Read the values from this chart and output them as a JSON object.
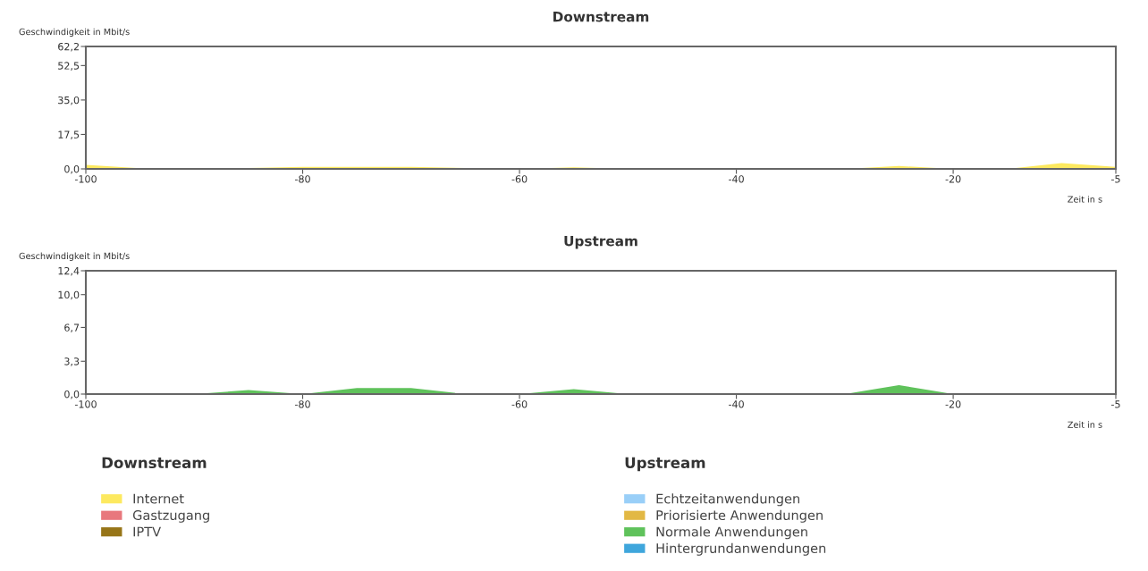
{
  "chart_data": [
    {
      "type": "area",
      "title": "Downstream",
      "ylabel": "Geschwindigkeit in Mbit/s",
      "xlabel": "Zeit in s",
      "legend_title": "Downstream",
      "legend": "bottom",
      "grid": false,
      "x": [
        -100,
        -95,
        -90,
        -85,
        -80,
        -75,
        -70,
        -65,
        -60,
        -55,
        -50,
        -45,
        -40,
        -35,
        -30,
        -25,
        -20,
        -15,
        -10,
        -5
      ],
      "xlim": [
        -100,
        -5
      ],
      "xticks": [
        -100,
        -80,
        -60,
        -40,
        -20,
        -5
      ],
      "ylim": [
        0,
        62.2
      ],
      "yticks": [
        {
          "value": 0,
          "label": "0,0"
        },
        {
          "value": 17.5,
          "label": "17,5"
        },
        {
          "value": 35,
          "label": "35,0"
        },
        {
          "value": 52.5,
          "label": "52,5"
        },
        {
          "value": 62.2,
          "label": "62,2"
        }
      ],
      "series": [
        {
          "name": "Internet",
          "color": "#fde95f",
          "values": [
            2,
            0.3,
            0,
            0.5,
            1,
            1,
            1,
            0.5,
            0,
            0.8,
            0,
            0,
            0,
            0,
            0,
            1.5,
            0,
            0,
            3,
            1
          ]
        },
        {
          "name": "Gastzugang",
          "color": "#e8787d",
          "values": [
            null,
            null,
            null,
            null,
            null,
            null,
            null,
            null,
            null,
            null,
            null,
            null,
            null,
            null,
            null,
            null,
            null,
            null,
            null,
            null
          ]
        },
        {
          "name": "IPTV",
          "color": "#977518",
          "values": [
            null,
            null,
            null,
            null,
            null,
            null,
            null,
            null,
            null,
            null,
            null,
            null,
            null,
            null,
            null,
            null,
            null,
            null,
            null,
            null
          ]
        }
      ]
    },
    {
      "type": "area",
      "title": "Upstream",
      "ylabel": "Geschwindigkeit in Mbit/s",
      "xlabel": "Zeit in s",
      "legend_title": "Upstream",
      "legend": "bottom",
      "grid": false,
      "x": [
        -100,
        -95,
        -90,
        -85,
        -80,
        -75,
        -70,
        -65,
        -60,
        -55,
        -50,
        -45,
        -40,
        -35,
        -30,
        -25,
        -20,
        -15,
        -10,
        -5
      ],
      "xlim": [
        -100,
        -5
      ],
      "xticks": [
        -100,
        -80,
        -60,
        -40,
        -20,
        -5
      ],
      "ylim": [
        0,
        12.4
      ],
      "yticks": [
        {
          "value": 0,
          "label": "0,0"
        },
        {
          "value": 3.3,
          "label": "3,3"
        },
        {
          "value": 6.7,
          "label": "6,7"
        },
        {
          "value": 10,
          "label": "10,0"
        },
        {
          "value": 12.4,
          "label": "12,4"
        }
      ],
      "series": [
        {
          "name": "Echtzeitanwendungen",
          "color": "#99cff8",
          "values": [
            null,
            null,
            null,
            null,
            null,
            null,
            null,
            null,
            null,
            null,
            null,
            null,
            null,
            null,
            null,
            null,
            null,
            null,
            null,
            null
          ]
        },
        {
          "name": "Priorisierte Anwendungen",
          "color": "#e2b844",
          "values": [
            null,
            null,
            null,
            null,
            null,
            null,
            null,
            null,
            null,
            null,
            null,
            null,
            null,
            null,
            null,
            null,
            null,
            null,
            null,
            null
          ]
        },
        {
          "name": "Normale Anwendungen",
          "color": "#5fc25b",
          "values": [
            0,
            0,
            0,
            0.4,
            0,
            0.6,
            0.6,
            0,
            0,
            0.5,
            0,
            0,
            0,
            0,
            0,
            0.9,
            0,
            0,
            0,
            0
          ]
        },
        {
          "name": "Hintergrundanwendungen",
          "color": "#3fa6dc",
          "values": [
            null,
            null,
            null,
            null,
            null,
            null,
            null,
            null,
            null,
            null,
            null,
            null,
            null,
            null,
            null,
            null,
            null,
            null,
            null,
            null
          ]
        }
      ]
    }
  ]
}
